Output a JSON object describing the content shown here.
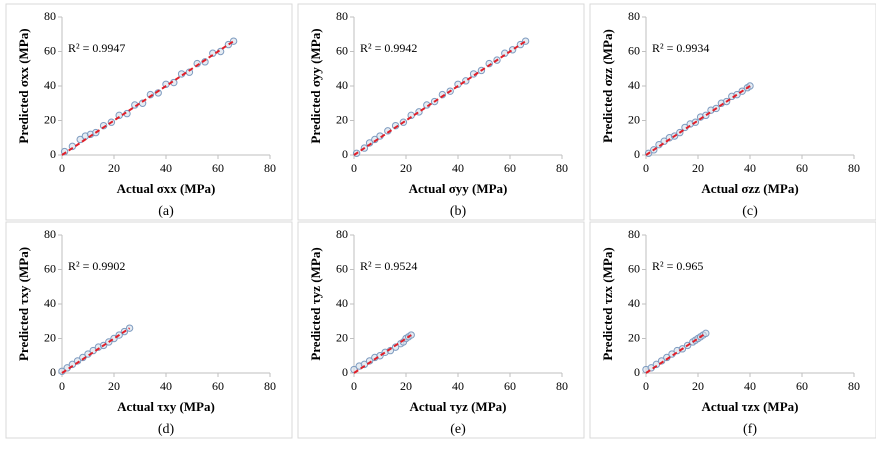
{
  "chart_data": [
    {
      "type": "scatter",
      "caption": "(a)",
      "x_label": "Actual σxx (MPa)",
      "y_label": "Predicted σxx (MPa)",
      "annotation": "R² = 0.9947",
      "x": [
        1,
        4,
        7,
        9,
        11,
        13,
        16,
        19,
        22,
        25,
        28,
        31,
        34,
        37,
        40,
        43,
        46,
        49,
        52,
        55,
        58,
        61,
        64,
        66
      ],
      "values": [
        2,
        5,
        9,
        11,
        12,
        13,
        17,
        19,
        23,
        24,
        29,
        30,
        35,
        36,
        41,
        42,
        47,
        48,
        53,
        54,
        59,
        60,
        64,
        66
      ],
      "fit": {
        "x": [
          0,
          66
        ],
        "y": [
          0,
          66
        ]
      },
      "color": "#7f9cc0",
      "fit_color": "#e0202a",
      "xlim": [
        0,
        80
      ],
      "ylim": [
        0,
        80
      ],
      "xticks": [
        0,
        20,
        40,
        60,
        80
      ],
      "yticks": [
        0,
        20,
        40,
        60,
        80
      ]
    },
    {
      "type": "scatter",
      "caption": "(b)",
      "x_label": "Actual σyy (MPa)",
      "y_label": "Predicted σyy (MPa)",
      "annotation": "R² = 0.9942",
      "x": [
        1,
        4,
        6,
        8,
        10,
        13,
        16,
        19,
        22,
        25,
        28,
        31,
        34,
        37,
        40,
        43,
        46,
        49,
        52,
        55,
        58,
        61,
        64,
        66
      ],
      "values": [
        1,
        4,
        7,
        9,
        11,
        14,
        17,
        19,
        23,
        25,
        29,
        31,
        35,
        37,
        41,
        43,
        47,
        49,
        53,
        55,
        59,
        61,
        64,
        66
      ],
      "fit": {
        "x": [
          0,
          66
        ],
        "y": [
          0,
          66
        ]
      },
      "color": "#7f9cc0",
      "fit_color": "#e0202a",
      "xlim": [
        0,
        80
      ],
      "ylim": [
        0,
        80
      ],
      "xticks": [
        0,
        20,
        40,
        60,
        80
      ],
      "yticks": [
        0,
        20,
        40,
        60,
        80
      ]
    },
    {
      "type": "scatter",
      "caption": "(c)",
      "x_label": "Actual σzz (MPa)",
      "y_label": "Predicted σzz (MPa)",
      "annotation": "R² = 0.9934",
      "x": [
        1,
        3,
        5,
        7,
        9,
        11,
        13,
        15,
        17,
        19,
        21,
        23,
        25,
        27,
        29,
        31,
        33,
        35,
        37,
        39,
        40
      ],
      "values": [
        1,
        3,
        6,
        8,
        10,
        11,
        13,
        16,
        18,
        19,
        22,
        23,
        26,
        27,
        30,
        31,
        34,
        35,
        37,
        39,
        40
      ],
      "fit": {
        "x": [
          0,
          40
        ],
        "y": [
          0,
          40
        ]
      },
      "color": "#7f9cc0",
      "fit_color": "#e0202a",
      "xlim": [
        0,
        80
      ],
      "ylim": [
        0,
        80
      ],
      "xticks": [
        0,
        20,
        40,
        60,
        80
      ],
      "yticks": [
        0,
        20,
        40,
        60,
        80
      ]
    },
    {
      "type": "scatter",
      "caption": "(d)",
      "x_label": "Actual τxy (MPa)",
      "y_label": "Predicted τxy (MPa)",
      "annotation": "R² = 0.9902",
      "x": [
        0,
        2,
        4,
        6,
        8,
        10,
        12,
        14,
        16,
        18,
        20,
        22,
        24,
        26
      ],
      "values": [
        1,
        3,
        5,
        7,
        9,
        11,
        13,
        15,
        16,
        18,
        20,
        22,
        24,
        26
      ],
      "fit": {
        "x": [
          0,
          26
        ],
        "y": [
          0,
          26
        ]
      },
      "color": "#7f9cc0",
      "fit_color": "#e0202a",
      "xlim": [
        0,
        80
      ],
      "ylim": [
        0,
        80
      ],
      "xticks": [
        0,
        20,
        40,
        60,
        80
      ],
      "yticks": [
        0,
        20,
        40,
        60,
        80
      ]
    },
    {
      "type": "scatter",
      "caption": "(e)",
      "x_label": "Actual τyz (MPa)",
      "y_label": "Predicted τyz (MPa)",
      "annotation": "R² = 0.9524",
      "x": [
        0,
        2,
        4,
        6,
        8,
        10,
        12,
        14,
        16,
        18,
        19,
        20,
        21,
        22
      ],
      "values": [
        2,
        4,
        5,
        7,
        9,
        10,
        12,
        13,
        15,
        17,
        18,
        20,
        21,
        22
      ],
      "fit": {
        "x": [
          0,
          22
        ],
        "y": [
          0,
          22
        ]
      },
      "color": "#7f9cc0",
      "fit_color": "#e0202a",
      "xlim": [
        0,
        80
      ],
      "ylim": [
        0,
        80
      ],
      "xticks": [
        0,
        20,
        40,
        60,
        80
      ],
      "yticks": [
        0,
        20,
        40,
        60,
        80
      ]
    },
    {
      "type": "scatter",
      "caption": "(f)",
      "x_label": "Actual τzx (MPa)",
      "y_label": "Predicted τzx (MPa)",
      "annotation": "R² = 0.965",
      "x": [
        0,
        2,
        4,
        6,
        8,
        10,
        12,
        14,
        16,
        18,
        19,
        20,
        21,
        22,
        23
      ],
      "values": [
        2,
        3,
        5,
        7,
        9,
        11,
        13,
        14,
        16,
        18,
        19,
        20,
        21,
        22,
        23
      ],
      "fit": {
        "x": [
          0,
          23
        ],
        "y": [
          0,
          23
        ]
      },
      "color": "#7f9cc0",
      "fit_color": "#e0202a",
      "xlim": [
        0,
        80
      ],
      "ylim": [
        0,
        80
      ],
      "xticks": [
        0,
        20,
        40,
        60,
        80
      ],
      "yticks": [
        0,
        20,
        40,
        60,
        80
      ]
    }
  ]
}
